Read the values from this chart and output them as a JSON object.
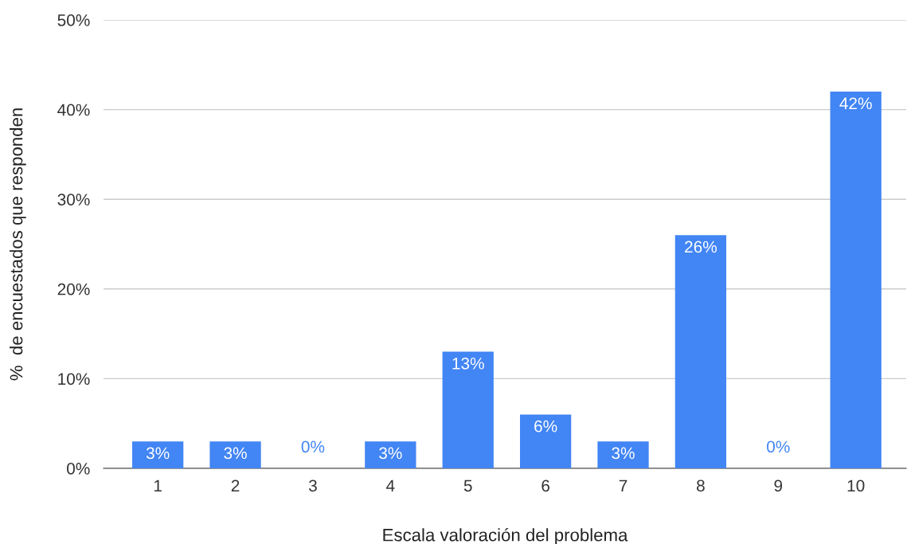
{
  "chart_data": {
    "type": "bar",
    "xlabel": "Escala valoración del problema",
    "ylabel": "%  de encuestados que responden",
    "categories": [
      "1",
      "2",
      "3",
      "4",
      "5",
      "6",
      "7",
      "8",
      "9",
      "10"
    ],
    "values": [
      3,
      3,
      0,
      3,
      13,
      6,
      3,
      26,
      0,
      42
    ],
    "value_labels": [
      "3%",
      "3%",
      "0%",
      "3%",
      "13%",
      "6%",
      "3%",
      "26%",
      "0%",
      "42%"
    ],
    "color": "#4285f4",
    "ylim": [
      0,
      50
    ],
    "yticks": [
      {
        "value": 0,
        "label": "0%"
      },
      {
        "value": 10,
        "label": "10%"
      },
      {
        "value": 20,
        "label": "20%"
      },
      {
        "value": 30,
        "label": "30%"
      },
      {
        "value": 40,
        "label": "40%"
      },
      {
        "value": 50,
        "label": "50%"
      }
    ],
    "grid": "y",
    "legend": false
  }
}
